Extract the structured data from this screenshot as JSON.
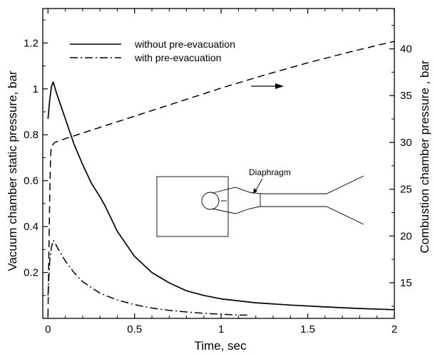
{
  "chart_data": {
    "type": "line",
    "xlabel": "Time, sec",
    "ylabel": "Vacuum chamber static pressure, bar",
    "y2label": "Combustion chamber pressure , bar",
    "xlim": [
      -0.03,
      2.0
    ],
    "ylim": [
      0.0,
      1.35
    ],
    "y2lim": [
      11.2,
      44.3
    ],
    "x_ticks": [
      "0",
      "0.5",
      "1",
      "1.5",
      "2"
    ],
    "x_tick_values": [
      0,
      0.5,
      1,
      1.5,
      2
    ],
    "y_ticks": [
      "0.2",
      "0.4",
      "0.6",
      "0.8",
      "1",
      "1.2"
    ],
    "y_tick_values": [
      0.2,
      0.4,
      0.6,
      0.8,
      1.0,
      1.2
    ],
    "y2_ticks": [
      "15",
      "20",
      "25",
      "30",
      "35",
      "40"
    ],
    "y2_tick_values": [
      15,
      20,
      25,
      30,
      35,
      40
    ],
    "legend_position": "top-left",
    "grid": false,
    "series": [
      {
        "name": "without pre-evacuation",
        "style": "solid",
        "axis": "left",
        "x": [
          0.0,
          0.01,
          0.02,
          0.03,
          0.05,
          0.1,
          0.15,
          0.2,
          0.25,
          0.3,
          0.33,
          0.4,
          0.5,
          0.6,
          0.7,
          0.8,
          0.9,
          1.0,
          1.2,
          1.4,
          1.6,
          1.8,
          2.0
        ],
        "y": [
          0.87,
          0.95,
          1.01,
          1.03,
          0.98,
          0.87,
          0.76,
          0.67,
          0.59,
          0.53,
          0.49,
          0.38,
          0.27,
          0.2,
          0.155,
          0.12,
          0.1,
          0.085,
          0.068,
          0.058,
          0.05,
          0.043,
          0.038
        ]
      },
      {
        "name": "with pre-evacuation",
        "style": "dashdot",
        "axis": "left",
        "x": [
          0.0,
          0.01,
          0.02,
          0.03,
          0.04,
          0.06,
          0.1,
          0.15,
          0.2,
          0.3,
          0.4,
          0.5,
          0.6,
          0.7,
          0.8,
          0.9,
          1.0,
          1.1,
          1.15
        ],
        "y": [
          0.1,
          0.25,
          0.31,
          0.34,
          0.33,
          0.3,
          0.25,
          0.2,
          0.16,
          0.11,
          0.08,
          0.06,
          0.045,
          0.035,
          0.028,
          0.022,
          0.018,
          0.015,
          0.014
        ]
      },
      {
        "name": "",
        "style": "dashed",
        "axis": "right",
        "x": [
          0.0,
          0.005,
          0.01,
          0.015,
          0.02,
          0.04,
          0.1,
          0.3,
          0.5,
          0.75,
          1.0,
          1.25,
          1.5,
          1.75,
          2.0
        ],
        "y": [
          11.5,
          18.0,
          24.0,
          28.5,
          29.6,
          30.0,
          30.4,
          31.6,
          32.8,
          34.3,
          35.8,
          37.2,
          38.5,
          39.7,
          40.8
        ]
      }
    ],
    "annotations": [
      "Diaphragm"
    ]
  }
}
